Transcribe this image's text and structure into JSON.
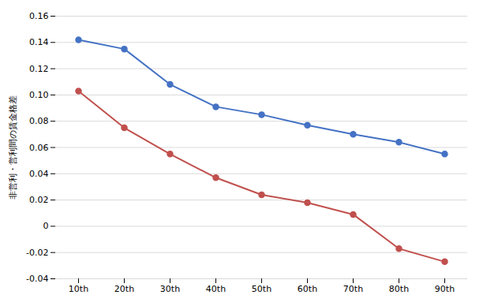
{
  "chart_data": {
    "type": "line",
    "ylabel": "非営利・営利間の賃金格差",
    "categories": [
      "10th",
      "20th",
      "30th",
      "40th",
      "50th",
      "60th",
      "70th",
      "80th",
      "90th"
    ],
    "series": [
      {
        "color": "#4472C4",
        "values": [
          0.142,
          0.135,
          0.108,
          0.091,
          0.085,
          0.077,
          0.07,
          0.064,
          0.055
        ]
      },
      {
        "color": "#C0504D",
        "values": [
          0.103,
          0.075,
          0.055,
          0.037,
          0.024,
          0.018,
          0.009,
          -0.017,
          -0.027
        ]
      }
    ],
    "ylim": [
      -0.04,
      0.16
    ],
    "yticks": [
      -0.04,
      -0.02,
      0,
      0.02,
      0.04,
      0.06,
      0.08,
      {
        "value": 0.1,
        "label": "0.10"
      },
      0.12,
      0.14,
      0.16
    ],
    "grid": true,
    "marker": "circle"
  }
}
